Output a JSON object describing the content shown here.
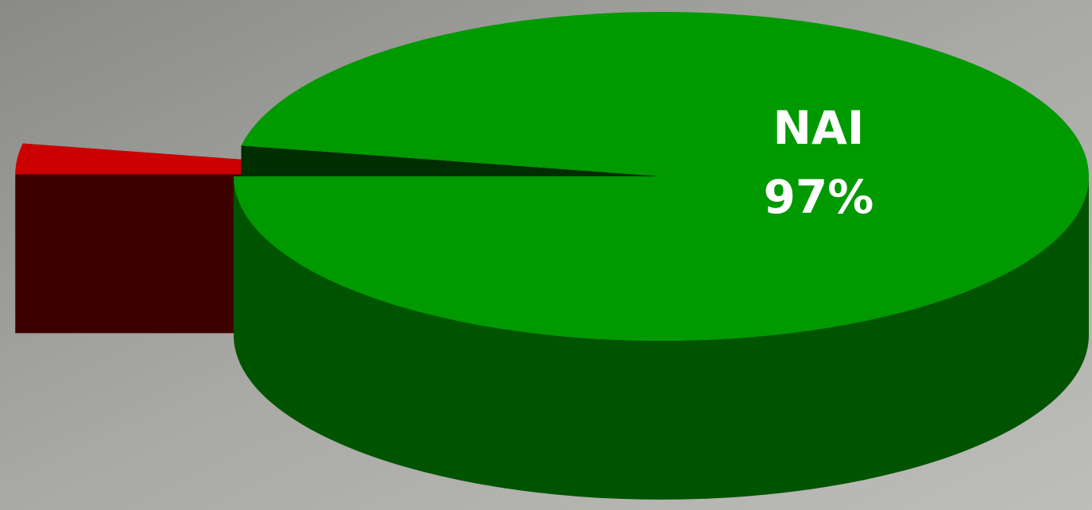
{
  "chart_data": {
    "type": "pie",
    "categories": [
      null,
      "NAI"
    ],
    "values": [
      3,
      97
    ],
    "value_labels": [
      null,
      "97%"
    ],
    "colors": [
      "#cc0000",
      "#009900"
    ]
  }
}
